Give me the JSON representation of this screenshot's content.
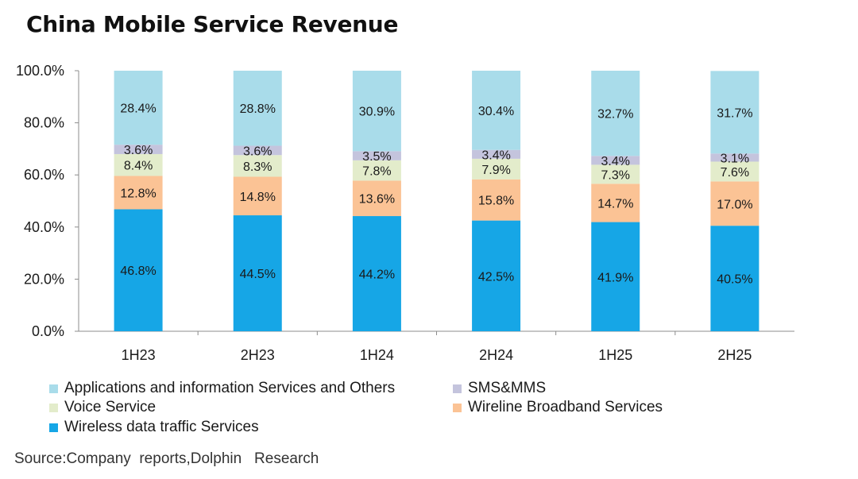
{
  "chart_data": {
    "type": "bar",
    "stacked": true,
    "title": "China Mobile Service Revenue",
    "categories": [
      "1H23",
      "2H23",
      "1H24",
      "2H24",
      "1H25",
      "2H25"
    ],
    "y_ticks": [
      "100.0%",
      "80.0%",
      "60.0%",
      "40.0%",
      "20.0%",
      "0.0%"
    ],
    "ylim": [
      0,
      100
    ],
    "series": [
      {
        "name": "Wireless data traffic Services",
        "color": "#16a6e6",
        "values": [
          46.8,
          44.5,
          44.2,
          42.5,
          41.9,
          40.5
        ],
        "labels": [
          "46.8%",
          "44.5%",
          "44.2%",
          "42.5%",
          "41.9%",
          "40.5%"
        ]
      },
      {
        "name": "Wireline Broadband Services",
        "color": "#fbc395",
        "values": [
          12.8,
          14.8,
          13.6,
          15.8,
          14.7,
          17.0
        ],
        "labels": [
          "12.8%",
          "14.8%",
          "13.6%",
          "15.8%",
          "14.7%",
          "17.0%"
        ]
      },
      {
        "name": "Voice Service",
        "color": "#e3eccb",
        "values": [
          8.4,
          8.3,
          7.8,
          7.9,
          7.3,
          7.6
        ],
        "labels": [
          "8.4%",
          "8.3%",
          "7.8%",
          "7.9%",
          "7.3%",
          "7.6%"
        ]
      },
      {
        "name": "SMS&MMS",
        "color": "#c4c4dd",
        "values": [
          3.6,
          3.6,
          3.5,
          3.4,
          3.4,
          3.1
        ],
        "labels": [
          "3.6%",
          "3.6%",
          "3.5%",
          "3.4%",
          "3.4%",
          "3.1%"
        ]
      },
      {
        "name": "Applications and information Services and Others",
        "color": "#a9dcea",
        "values": [
          28.4,
          28.8,
          30.9,
          30.4,
          32.7,
          31.7
        ],
        "labels": [
          "28.4%",
          "28.8%",
          "30.9%",
          "30.4%",
          "32.7%",
          "31.7%"
        ]
      }
    ],
    "legend_placement": "bottom",
    "grid": false
  },
  "source": "Source:Company  reports,Dolphin   Research"
}
